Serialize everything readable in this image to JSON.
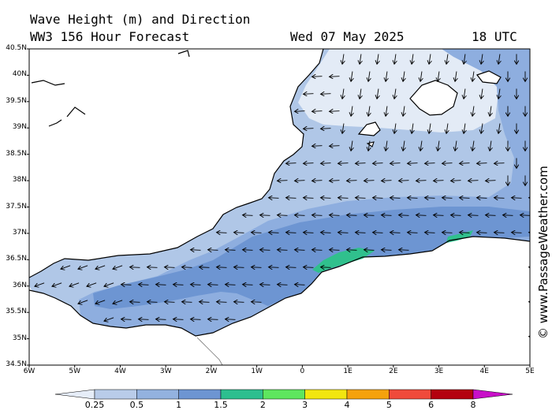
{
  "header": {
    "title": "Wave Height (m) and Direction",
    "model": "WW3 156 Hour Forecast",
    "date": "Wed 07 May 2025",
    "time": "18 UTC"
  },
  "credit": "© www.PassageWeather.com",
  "latitude_labels": [
    "40.5N",
    "40N",
    "39.5N",
    "39N",
    "38.5N",
    "38N",
    "37.5N",
    "37N",
    "36.5N",
    "36N",
    "35.5N",
    "35N",
    "34.5N"
  ],
  "longitude_labels": [
    "6W",
    "5W",
    "4W",
    "3W",
    "2W",
    "1W",
    "0",
    "1E",
    "2E",
    "3E",
    "4E",
    "5E"
  ],
  "legend": {
    "labels": [
      "0.25",
      "0.5",
      "1",
      "1.5",
      "2",
      "3",
      "4",
      "5",
      "6",
      "8"
    ],
    "colors": [
      "#e6edf8",
      "#b9cce9",
      "#93b2df",
      "#6d95d2",
      "#2dbf8f",
      "#5ee65e",
      "#f2e60f",
      "#f5a20c",
      "#f04a3b",
      "#b4020f",
      "#c80fc8"
    ]
  },
  "map_colors": {
    "land": "#ffffff",
    "sea_calm": "#e3ebf6",
    "sea_low": "#b0c7e7",
    "sea_mid": "#8eaedf",
    "sea_high": "#6d95d2",
    "sea_max": "#30c08d"
  },
  "arrow_icon": "wave-direction-arrow-icon"
}
